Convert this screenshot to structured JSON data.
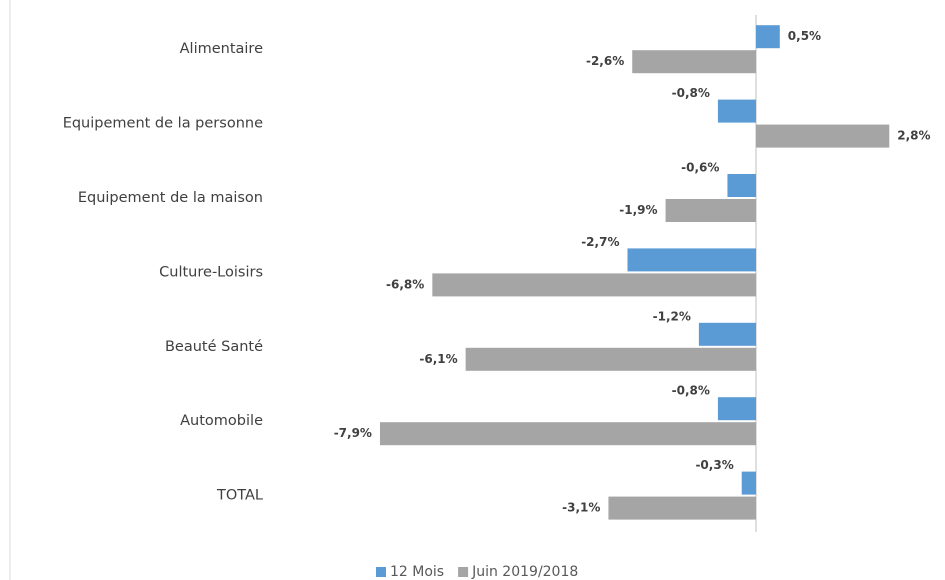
{
  "chart_data": {
    "type": "barh",
    "categories": [
      "Alimentaire",
      "Equipement de la personne",
      "Equipement de la maison",
      "Culture-Loisirs",
      "Beauté Santé",
      "Automobile",
      "TOTAL"
    ],
    "series": [
      {
        "name": "12 Mois",
        "color": "#5b9bd5",
        "values": [
          0.5,
          -0.8,
          -0.6,
          -2.7,
          -1.2,
          -0.8,
          -0.3
        ],
        "value_labels": [
          "0,5%",
          "-0,8%",
          "-0,6%",
          "-2,7%",
          "-1,2%",
          "-0,8%",
          "-0,3%"
        ]
      },
      {
        "name": "Juin 2019/2018",
        "color": "#a5a5a5",
        "values": [
          -2.6,
          2.8,
          -1.9,
          -6.8,
          -6.1,
          -7.9,
          -3.1
        ],
        "value_labels": [
          "-2,6%",
          "2,8%",
          "-1,9%",
          "-6,8%",
          "-6,1%",
          "-7,9%",
          "-3,1%"
        ]
      }
    ],
    "legend": "bottom"
  }
}
